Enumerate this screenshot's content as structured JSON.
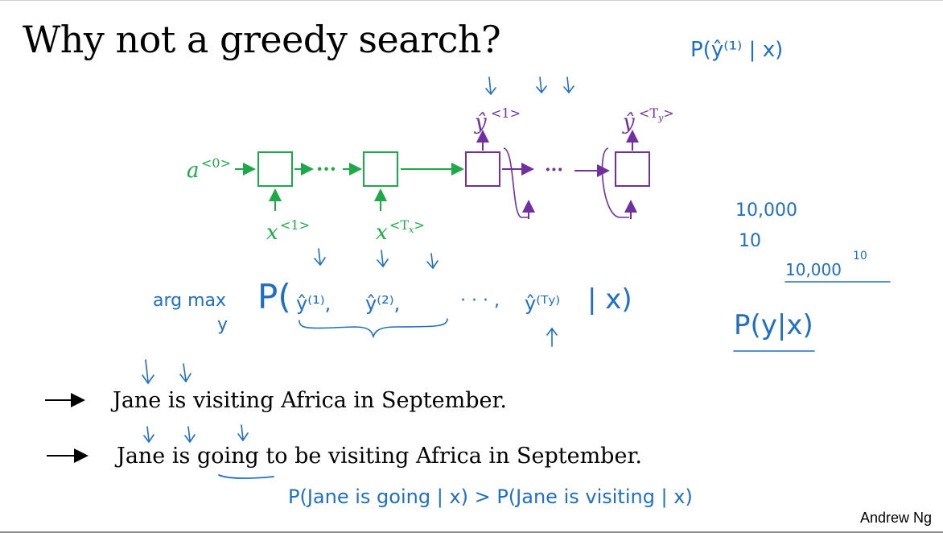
{
  "title": "Why not a greedy search?",
  "credit": "Andrew Ng",
  "colors": {
    "green": "#1ea84a",
    "purple": "#7030a0",
    "ink": "#1f6fc4",
    "black": "#000000"
  },
  "sentences": [
    "Jane is visiting Africa in September.",
    "Jane is going to be visiting Africa in September."
  ],
  "network": {
    "a0": "a",
    "a0_sup": "<0>",
    "x1": "x",
    "x1_sup": "<1>",
    "xTx": "x",
    "xTx_sup": "<T",
    "xTx_sub": "x",
    "xTx_close": ">",
    "dots": "···",
    "y1": "ŷ",
    "y1_sup": "<1>",
    "yTy": "ŷ",
    "yTy_sup": "<T",
    "yTy_sub": "y",
    "yTy_close": ">"
  },
  "handwriting": {
    "top_prob": "P(ŷ⁽¹⁾ | x)",
    "argmax": "arg max",
    "argmax_under": "y",
    "prob_seq_open": "P(",
    "y_hat_1": "ŷ⁽¹⁾,",
    "y_hat_2": "ŷ⁽²⁾,",
    "seq_dots": "· · · ,",
    "y_hat_ty": "ŷ⁽ᵀʸ⁾",
    "given_x": "| x)",
    "num_10000": "10,000",
    "num_10": "10",
    "num_pow": "10,000",
    "num_pow_exp": "10",
    "p_y_given_x": "P(y|x)",
    "bottom_compare": "P(Jane is going | x) > P(Jane is visiting | x)"
  }
}
